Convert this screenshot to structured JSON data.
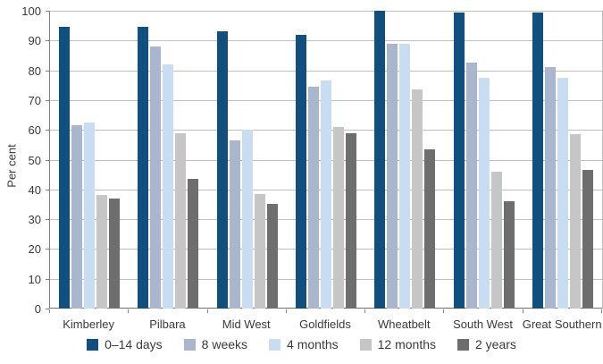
{
  "chart_data": {
    "type": "bar",
    "title": "",
    "ylabel": "Per cent",
    "xlabel": "",
    "ylim": [
      0,
      100
    ],
    "ytick_step": 10,
    "grid": true,
    "legend_position": "bottom",
    "categories": [
      "Kimberley",
      "Pilbara",
      "Mid West",
      "Goldfields",
      "Wheatbelt",
      "South West",
      "Great Southern"
    ],
    "series": [
      {
        "name": "0–14 days",
        "color": "#104f7e",
        "values": [
          94.5,
          94.5,
          93,
          92,
          100,
          99.5,
          99.5
        ]
      },
      {
        "name": "8 weeks",
        "color": "#a9b6cd",
        "values": [
          61.5,
          88,
          56.5,
          74.5,
          89,
          82.5,
          81
        ]
      },
      {
        "name": "4 months",
        "color": "#c9ddf2",
        "values": [
          62.5,
          82,
          60,
          76.5,
          89,
          77.5,
          77.5
        ]
      },
      {
        "name": "12 months",
        "color": "#c6c6c6",
        "values": [
          38,
          59,
          38.5,
          61,
          73.5,
          46,
          58.5
        ]
      },
      {
        "name": "2 years",
        "color": "#6e6e6e",
        "values": [
          37,
          43.5,
          35,
          59,
          53.5,
          36,
          46.5
        ]
      }
    ]
  }
}
